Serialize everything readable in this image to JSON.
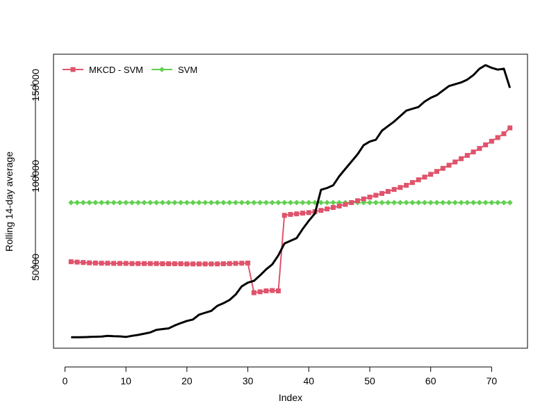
{
  "chart_data": {
    "type": "line",
    "title": "",
    "xlabel": "Index",
    "ylabel": "Rolling 14-day average",
    "xlim": [
      1,
      73
    ],
    "ylim": [
      11500,
      161000
    ],
    "x_ticks": [
      0,
      10,
      20,
      30,
      40,
      50,
      60,
      70
    ],
    "y_ticks": [
      50000,
      100000,
      150000
    ],
    "grid": false,
    "legend": {
      "position": "top-left",
      "entries": [
        "MKCD - SVM",
        "SVM"
      ]
    },
    "series": [
      {
        "name": "",
        "color": "#000000",
        "marker": "none",
        "values": [
          11500,
          11500,
          11600,
          11700,
          11800,
          11900,
          12300,
          12100,
          12000,
          11700,
          12300,
          12800,
          13500,
          14200,
          15600,
          16000,
          16400,
          18000,
          19300,
          20500,
          21300,
          23900,
          25000,
          26000,
          28800,
          30200,
          32000,
          35000,
          39500,
          41500,
          42500,
          45500,
          48800,
          51500,
          56500,
          63000,
          64500,
          66000,
          71000,
          75500,
          79500,
          92500,
          93500,
          95000,
          100000,
          104000,
          108000,
          112000,
          117000,
          119000,
          120000,
          125000,
          127500,
          130000,
          133000,
          136000,
          137000,
          138000,
          141000,
          143000,
          144500,
          147000,
          149500,
          150500,
          151500,
          153000,
          155500,
          159000,
          161000,
          159500,
          158500,
          159000,
          148500
        ]
      },
      {
        "name": "MKCD - SVM",
        "color": "#DF536B",
        "marker": "square",
        "values": [
          53000,
          52800,
          52600,
          52400,
          52300,
          52200,
          52200,
          52100,
          52100,
          52100,
          52000,
          52000,
          52000,
          52000,
          52000,
          51900,
          51900,
          51900,
          51900,
          51800,
          51800,
          51800,
          51800,
          51800,
          51800,
          51900,
          52000,
          52100,
          52200,
          52300,
          36000,
          36500,
          37000,
          37200,
          37000,
          78500,
          79000,
          79300,
          79700,
          80000,
          80500,
          81200,
          82000,
          82800,
          83600,
          84500,
          85500,
          86500,
          87500,
          88500,
          89500,
          90500,
          91600,
          92700,
          93800,
          95000,
          96500,
          98000,
          99500,
          101000,
          102600,
          104300,
          106000,
          107800,
          109600,
          111400,
          113300,
          115200,
          117200,
          119200,
          121200,
          123300,
          126500
        ]
      },
      {
        "name": "SVM",
        "color": "#61D04F",
        "marker": "diamond",
        "values": [
          85500,
          85500,
          85500,
          85500,
          85500,
          85500,
          85500,
          85500,
          85500,
          85500,
          85500,
          85500,
          85500,
          85500,
          85500,
          85500,
          85500,
          85500,
          85500,
          85500,
          85500,
          85500,
          85500,
          85500,
          85500,
          85500,
          85500,
          85500,
          85500,
          85500,
          85500,
          85500,
          85500,
          85500,
          85500,
          85500,
          85500,
          85500,
          85500,
          85500,
          85500,
          85500,
          85500,
          85500,
          85500,
          85500,
          85500,
          85500,
          85500,
          85500,
          85500,
          85500,
          85500,
          85500,
          85500,
          85500,
          85500,
          85500,
          85500,
          85500,
          85500,
          85500,
          85500,
          85500,
          85500,
          85500,
          85500,
          85500,
          85500,
          85500,
          85500,
          85500,
          85500
        ]
      }
    ]
  }
}
